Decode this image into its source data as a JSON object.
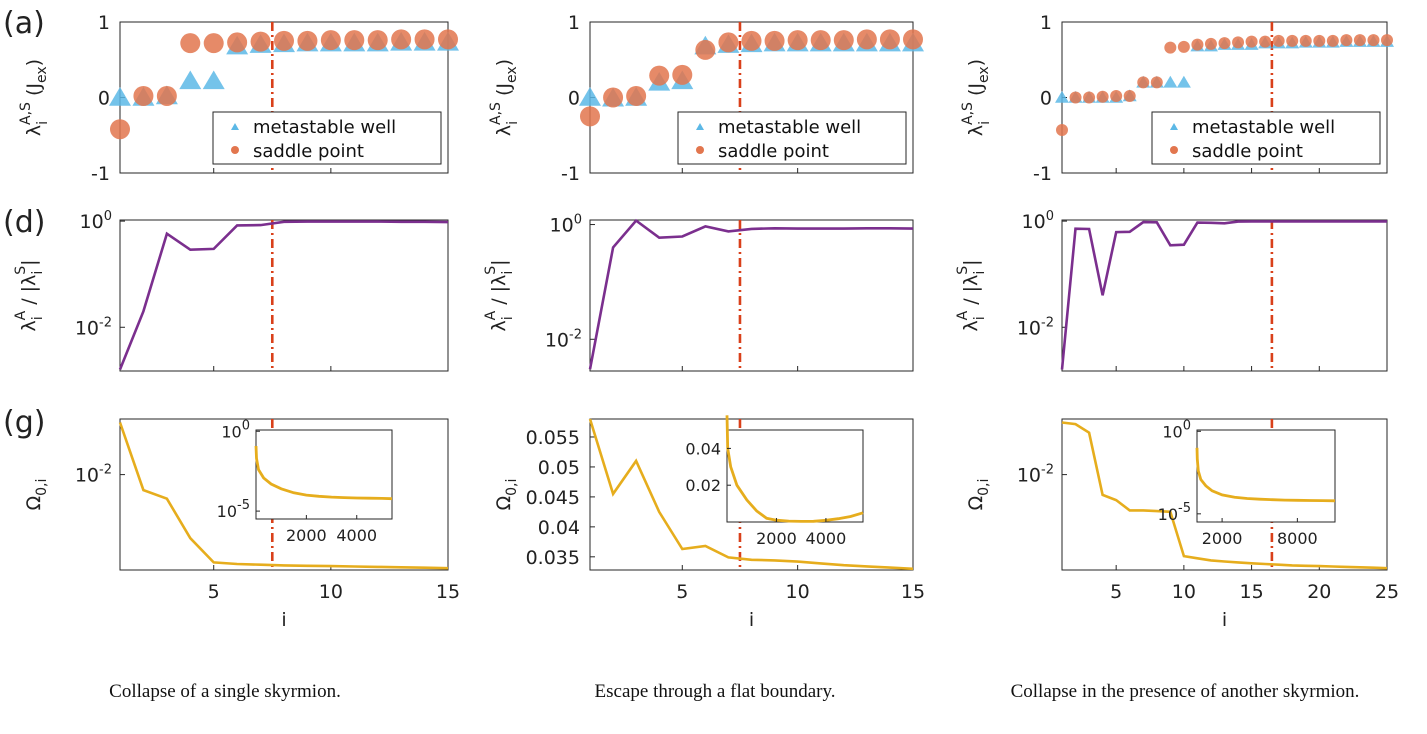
{
  "panel_labels": [
    "(a)",
    "(d)",
    "(g)"
  ],
  "captions": [
    "Collapse of a single skyrmion.",
    "Escape through a flat boundary.",
    "Collapse in the presence of another skyrmion."
  ],
  "colors": {
    "well": "#5cb8e6",
    "saddle": "#e2764e",
    "ratio": "#7b2f8e",
    "omega": "#e6ad1d",
    "cut": "#d9401a"
  },
  "legend": {
    "well": "metastable well",
    "saddle": "saddle point"
  },
  "axis_labels": {
    "x": "i",
    "eig_base": "λ",
    "eig_sub": "i",
    "eig_sup": "A,S",
    "eig_unit": "(J",
    "eig_unit_sub": "ex",
    "eig_close": ")",
    "ratio_sub": "i",
    "ratio_sup": "A",
    "ratio_mid": "/ |λ",
    "ratio_sub2": "i",
    "ratio_sup2": "S",
    "ratio_end": "|",
    "omega_base": "Ω",
    "omega_sub": "0,i"
  },
  "chart_data": [
    {
      "type": "scatter",
      "panel": "a-col1",
      "xlim": [
        1,
        15
      ],
      "ylim": [
        -1,
        1
      ],
      "yticks": [
        "-1",
        "0",
        "1"
      ],
      "cut": 7.5,
      "series": [
        {
          "name": "metastable well",
          "x": [
            1,
            2,
            3,
            4,
            5,
            6,
            7,
            8,
            9,
            10,
            11,
            12,
            13,
            14,
            15
          ],
          "y": [
            0,
            0,
            0.02,
            0.22,
            0.22,
            0.68,
            0.7,
            0.71,
            0.72,
            0.72,
            0.72,
            0.72,
            0.73,
            0.73,
            0.73
          ]
        },
        {
          "name": "saddle point",
          "x": [
            1,
            2,
            3,
            4,
            5,
            6,
            7,
            8,
            9,
            10,
            11,
            12,
            13,
            14,
            15
          ],
          "y": [
            -0.42,
            0.02,
            0.02,
            0.72,
            0.72,
            0.73,
            0.74,
            0.75,
            0.75,
            0.76,
            0.76,
            0.76,
            0.77,
            0.77,
            0.77
          ]
        }
      ]
    },
    {
      "type": "scatter",
      "panel": "a-col2",
      "xlim": [
        1,
        15
      ],
      "ylim": [
        -1,
        1
      ],
      "yticks": [
        "-1",
        "0",
        "1"
      ],
      "cut": 7.5,
      "series": [
        {
          "name": "metastable well",
          "x": [
            1,
            2,
            3,
            4,
            5,
            6,
            7,
            8,
            9,
            10,
            11,
            12,
            13,
            14,
            15
          ],
          "y": [
            0,
            -0.01,
            0,
            0.2,
            0.22,
            0.68,
            0.7,
            0.71,
            0.72,
            0.72,
            0.72,
            0.72,
            0.72,
            0.72,
            0.72
          ]
        },
        {
          "name": "saddle point",
          "x": [
            1,
            2,
            3,
            4,
            5,
            6,
            7,
            8,
            9,
            10,
            11,
            12,
            13,
            14,
            15
          ],
          "y": [
            -0.25,
            0,
            0.02,
            0.29,
            0.3,
            0.63,
            0.73,
            0.75,
            0.75,
            0.76,
            0.76,
            0.76,
            0.77,
            0.77,
            0.77
          ]
        }
      ]
    },
    {
      "type": "scatter",
      "panel": "a-col3",
      "xlim": [
        1,
        25
      ],
      "ylim": [
        -1,
        1
      ],
      "yticks": [
        "-1",
        "0",
        "1"
      ],
      "cut": 16.5,
      "series": [
        {
          "name": "metastable well",
          "x": [
            1,
            2,
            3,
            4,
            5,
            6,
            7,
            8,
            9,
            10,
            11,
            12,
            13,
            14,
            15,
            16,
            17,
            18,
            19,
            20,
            21,
            22,
            23,
            24,
            25
          ],
          "y": [
            0,
            0,
            0,
            0,
            0,
            0.02,
            0.2,
            0.2,
            0.2,
            0.2,
            0.68,
            0.68,
            0.7,
            0.7,
            0.7,
            0.72,
            0.72,
            0.72,
            0.73,
            0.73,
            0.73,
            0.74,
            0.74,
            0.74,
            0.74
          ]
        },
        {
          "name": "saddle point",
          "x": [
            1,
            2,
            3,
            4,
            5,
            6,
            7,
            8,
            9,
            10,
            11,
            12,
            13,
            14,
            15,
            16,
            17,
            18,
            19,
            20,
            21,
            22,
            23,
            24,
            25
          ],
          "y": [
            -0.43,
            0,
            0,
            0.01,
            0.02,
            0.02,
            0.2,
            0.2,
            0.66,
            0.67,
            0.7,
            0.71,
            0.72,
            0.73,
            0.74,
            0.74,
            0.75,
            0.75,
            0.75,
            0.75,
            0.75,
            0.76,
            0.76,
            0.76,
            0.76
          ]
        }
      ]
    },
    {
      "type": "line",
      "panel": "d-col1",
      "log_y": true,
      "xlim": [
        1,
        15
      ],
      "ylim": [
        0.0015,
        1.05
      ],
      "yticks": [
        {
          "v": 1,
          "b": "10",
          "e": "0"
        },
        {
          "v": 0.01,
          "b": "10",
          "e": "-2"
        }
      ],
      "cut": 7.5,
      "series": [
        {
          "x": [
            1,
            2,
            3,
            4,
            5,
            6,
            7,
            8,
            9,
            10,
            11,
            12,
            13,
            14,
            15
          ],
          "y": [
            0.0016,
            0.02,
            0.58,
            0.29,
            0.3,
            0.83,
            0.84,
            0.97,
            0.98,
            0.98,
            0.98,
            0.98,
            0.97,
            0.97,
            0.96
          ]
        }
      ]
    },
    {
      "type": "line",
      "panel": "d-col2",
      "log_y": true,
      "xlim": [
        1,
        15
      ],
      "ylim": [
        0.0028,
        1.2
      ],
      "yticks": [
        {
          "v": 1,
          "b": "10",
          "e": "0"
        },
        {
          "v": 0.01,
          "b": "10",
          "e": "-2"
        }
      ],
      "cut": 7.5,
      "series": [
        {
          "x": [
            1,
            2,
            3,
            4,
            5,
            6,
            7,
            8,
            9,
            10,
            11,
            12,
            13,
            14,
            15
          ],
          "y": [
            0.003,
            0.4,
            1.17,
            0.59,
            0.62,
            0.93,
            0.76,
            0.84,
            0.86,
            0.85,
            0.85,
            0.85,
            0.86,
            0.86,
            0.85
          ]
        }
      ]
    },
    {
      "type": "line",
      "panel": "d-col3",
      "log_y": true,
      "xlim": [
        1,
        25
      ],
      "ylim": [
        0.0015,
        1.05
      ],
      "yticks": [
        {
          "v": 1,
          "b": "10",
          "e": "0"
        },
        {
          "v": 0.01,
          "b": "10",
          "e": "-2"
        }
      ],
      "cut": 16.5,
      "series": [
        {
          "x": [
            1,
            2,
            3,
            4,
            5,
            6,
            7,
            8,
            9,
            10,
            11,
            12,
            13,
            14,
            15,
            16,
            17,
            18,
            19,
            20,
            21,
            22,
            23,
            24,
            25
          ],
          "y": [
            0.0016,
            0.72,
            0.71,
            0.04,
            0.62,
            0.63,
            0.96,
            0.95,
            0.35,
            0.36,
            0.94,
            0.93,
            0.91,
            0.98,
            0.99,
            0.99,
            0.99,
            0.99,
            0.99,
            0.99,
            0.99,
            0.99,
            0.99,
            0.99,
            0.99
          ]
        }
      ]
    },
    {
      "type": "line",
      "panel": "g-col1",
      "log_y": true,
      "xlim": [
        1,
        15
      ],
      "ylim": [
        3.5e-05,
        0.27
      ],
      "xticks": [
        "5",
        "10",
        "15"
      ],
      "yticks": [
        {
          "v": 0.01,
          "b": "10",
          "e": "-2"
        }
      ],
      "cut": 7.5,
      "series": [
        {
          "x": [
            1,
            2,
            3,
            4,
            5,
            6,
            7,
            8,
            9,
            10,
            11,
            12,
            13,
            14,
            15
          ],
          "y": [
            0.22,
            0.004,
            0.0024,
            0.00023,
            5.5e-05,
            5e-05,
            4.8e-05,
            4.6e-05,
            4.5e-05,
            4.4e-05,
            4.3e-05,
            4.2e-05,
            4.1e-05,
            4e-05,
            3.9e-05
          ]
        }
      ],
      "inset": {
        "xlim": [
          0,
          5400
        ],
        "ylim": [
          3.2e-06,
          1.2
        ],
        "log_y": true,
        "xticks": [
          "2000",
          "4000"
        ],
        "yticks": [
          {
            "v": 1,
            "b": "10",
            "e": "0"
          },
          {
            "v": 1e-05,
            "b": "10",
            "e": "-5"
          }
        ],
        "x": [
          1,
          20,
          100,
          300,
          600,
          1000,
          1500,
          2000,
          2500,
          3000,
          3500,
          4000,
          4500,
          5000,
          5400
        ],
        "y": [
          0.12,
          0.02,
          0.004,
          0.0012,
          0.0005,
          0.00025,
          0.00014,
          0.0001,
          8.5e-05,
          7.5e-05,
          7e-05,
          6.6e-05,
          6.4e-05,
          6.2e-05,
          6e-05
        ]
      }
    },
    {
      "type": "line",
      "panel": "g-col2",
      "log_y": false,
      "xlim": [
        1,
        15
      ],
      "ylim": [
        0.0328,
        0.058
      ],
      "xticks": [
        "5",
        "10",
        "15"
      ],
      "yticks": [
        {
          "v": 0.055,
          "t": "0.055"
        },
        {
          "v": 0.05,
          "t": "0.05"
        },
        {
          "v": 0.045,
          "t": "0.045"
        },
        {
          "v": 0.04,
          "t": "0.04"
        },
        {
          "v": 0.035,
          "t": "0.035"
        }
      ],
      "cut": 7.5,
      "series": [
        {
          "x": [
            1,
            2,
            3,
            4,
            5,
            6,
            7,
            8,
            9,
            10,
            11,
            12,
            13,
            14,
            15
          ],
          "y": [
            0.058,
            0.0455,
            0.051,
            0.0425,
            0.0363,
            0.0368,
            0.0349,
            0.0345,
            0.0344,
            0.0342,
            0.0339,
            0.0336,
            0.0334,
            0.0332,
            0.033
          ]
        }
      ],
      "inset": {
        "xlim": [
          0,
          5500
        ],
        "ylim": [
          0,
          0.05
        ],
        "log_y": false,
        "xticks": [
          "2000",
          "4000"
        ],
        "yticks": [
          {
            "v": 0.04,
            "t": "0.04"
          },
          {
            "v": 0.02,
            "t": "0.02"
          }
        ],
        "x": [
          1,
          30,
          150,
          400,
          800,
          1200,
          1600,
          2000,
          2500,
          3000,
          3500,
          4000,
          4500,
          5000,
          5500
        ],
        "y": [
          0.058,
          0.04,
          0.03,
          0.02,
          0.012,
          0.006,
          0.002,
          0.001,
          0.0005,
          0.0003,
          0.0004,
          0.0009,
          0.0018,
          0.003,
          0.005
        ]
      }
    },
    {
      "type": "line",
      "panel": "g-col3",
      "log_y": true,
      "xlim": [
        1,
        25
      ],
      "ylim": [
        3.5e-05,
        0.27
      ],
      "xticks": [
        "5",
        "10",
        "15",
        "20",
        "25"
      ],
      "yticks": [
        {
          "v": 0.01,
          "b": "10",
          "e": "-2"
        }
      ],
      "cut": 16.5,
      "series": [
        {
          "x": [
            1,
            2,
            3,
            4,
            5,
            6,
            7,
            8,
            9,
            10,
            11,
            12,
            13,
            14,
            15,
            16,
            17,
            18,
            19,
            20,
            21,
            22,
            23,
            24,
            25
          ],
          "y": [
            0.22,
            0.2,
            0.12,
            0.003,
            0.0022,
            0.0012,
            0.0012,
            0.00115,
            0.0011,
            8e-05,
            7e-05,
            6.2e-05,
            5.8e-05,
            5.5e-05,
            5.2e-05,
            5e-05,
            4.8e-05,
            4.6e-05,
            4.5e-05,
            4.4e-05,
            4.3e-05,
            4.2e-05,
            4.1e-05,
            4e-05,
            3.9e-05
          ]
        }
      ],
      "inset": {
        "xlim": [
          0,
          11000
        ],
        "ylim": [
          3.2e-06,
          1.2
        ],
        "log_y": true,
        "xticks": [
          "2000",
          "8000"
        ],
        "yticks": [
          {
            "v": 1,
            "b": "10",
            "e": "0"
          },
          {
            "v": 1e-05,
            "b": "10",
            "e": "-5"
          }
        ],
        "x": [
          1,
          20,
          100,
          300,
          700,
          1200,
          2000,
          3000,
          4000,
          5000,
          6000,
          7000,
          8000,
          9000,
          10000,
          11000
        ],
        "y": [
          0.1,
          0.02,
          0.004,
          0.0012,
          0.0005,
          0.00025,
          0.00014,
          0.0001,
          8.5e-05,
          7.7e-05,
          7.2e-05,
          6.8e-05,
          6.6e-05,
          6.4e-05,
          6.3e-05,
          6.2e-05
        ]
      }
    }
  ]
}
